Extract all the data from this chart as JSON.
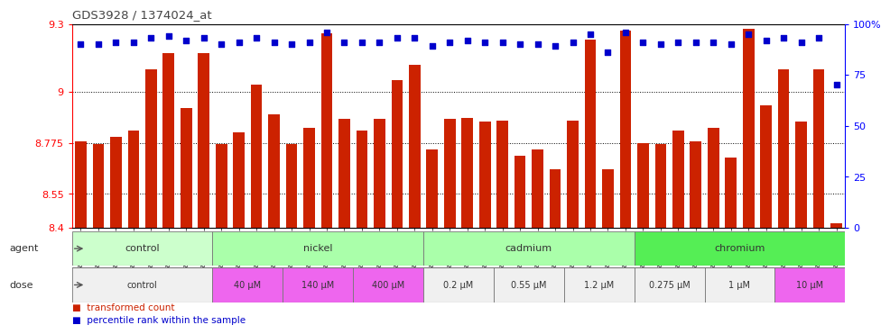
{
  "title": "GDS3928 / 1374024_at",
  "samples": [
    "GSM782280",
    "GSM782281",
    "GSM782291",
    "GSM782292",
    "GSM782302",
    "GSM782303",
    "GSM782313",
    "GSM782314",
    "GSM782282",
    "GSM782293",
    "GSM782304",
    "GSM782315",
    "GSM782283",
    "GSM782294",
    "GSM782305",
    "GSM782316",
    "GSM782284",
    "GSM782295",
    "GSM782306",
    "GSM782317",
    "GSM782288",
    "GSM782299",
    "GSM782310",
    "GSM782321",
    "GSM782289",
    "GSM782300",
    "GSM782311",
    "GSM782322",
    "GSM782290",
    "GSM782301",
    "GSM782312",
    "GSM782323",
    "GSM782285",
    "GSM782296",
    "GSM782307",
    "GSM782318",
    "GSM782286",
    "GSM782297",
    "GSM782308",
    "GSM782319",
    "GSM782287",
    "GSM782298",
    "GSM782309",
    "GSM782320"
  ],
  "bar_values": [
    8.78,
    8.77,
    8.8,
    8.83,
    9.1,
    9.17,
    8.93,
    9.17,
    8.77,
    8.82,
    9.03,
    8.9,
    8.77,
    8.84,
    9.26,
    8.88,
    8.83,
    8.88,
    9.05,
    9.12,
    8.745,
    8.88,
    8.885,
    8.87,
    8.875,
    8.72,
    8.745,
    8.66,
    8.875,
    9.23,
    8.66,
    9.27,
    8.775,
    8.77,
    8.83,
    8.78,
    8.84,
    8.71,
    9.28,
    8.94,
    9.1,
    8.87,
    9.1,
    8.42
  ],
  "percentile_values": [
    90,
    90,
    91,
    91,
    93,
    94,
    92,
    93,
    90,
    91,
    93,
    91,
    90,
    91,
    96,
    91,
    91,
    91,
    93,
    93,
    89,
    91,
    92,
    91,
    91,
    90,
    90,
    89,
    91,
    95,
    86,
    96,
    91,
    90,
    91,
    91,
    91,
    90,
    95,
    92,
    93,
    91,
    93,
    70
  ],
  "bar_color": "#cc2200",
  "dot_color": "#0000cc",
  "ylim_left": [
    8.4,
    9.3
  ],
  "ylim_right": [
    0,
    100
  ],
  "yticks_left": [
    8.4,
    8.55,
    8.775,
    9.0,
    9.3
  ],
  "yticks_right": [
    0,
    25,
    50,
    75,
    100
  ],
  "ytick_labels_left": [
    "8.4",
    "8.55",
    "8.775",
    "9",
    "9.3"
  ],
  "ytick_labels_right": [
    "0",
    "25",
    "50",
    "75",
    "100%"
  ],
  "grid_values": [
    8.55,
    8.775,
    9.0
  ],
  "agent_groups": [
    {
      "label": "control",
      "start": 0,
      "end": 8,
      "color": "#ccffcc"
    },
    {
      "label": "nickel",
      "start": 8,
      "end": 20,
      "color": "#aaffaa"
    },
    {
      "label": "cadmium",
      "start": 20,
      "end": 32,
      "color": "#aaffaa"
    },
    {
      "label": "chromium",
      "start": 32,
      "end": 44,
      "color": "#55ee55"
    }
  ],
  "dose_groups": [
    {
      "label": "control",
      "start": 0,
      "end": 8,
      "color": "#f0f0f0"
    },
    {
      "label": "40 μM",
      "start": 8,
      "end": 12,
      "color": "#ee66ee"
    },
    {
      "label": "140 μM",
      "start": 12,
      "end": 16,
      "color": "#ee66ee"
    },
    {
      "label": "400 μM",
      "start": 16,
      "end": 20,
      "color": "#ee66ee"
    },
    {
      "label": "0.2 μM",
      "start": 20,
      "end": 24,
      "color": "#f0f0f0"
    },
    {
      "label": "0.55 μM",
      "start": 24,
      "end": 28,
      "color": "#f0f0f0"
    },
    {
      "label": "1.2 μM",
      "start": 28,
      "end": 32,
      "color": "#f0f0f0"
    },
    {
      "label": "0.275 μM",
      "start": 32,
      "end": 36,
      "color": "#f0f0f0"
    },
    {
      "label": "1 μM",
      "start": 36,
      "end": 40,
      "color": "#f0f0f0"
    },
    {
      "label": "10 μM",
      "start": 40,
      "end": 44,
      "color": "#ee66ee"
    }
  ],
  "legend_items": [
    {
      "color": "#cc2200",
      "label": "transformed count"
    },
    {
      "color": "#0000cc",
      "label": "percentile rank within the sample"
    }
  ]
}
